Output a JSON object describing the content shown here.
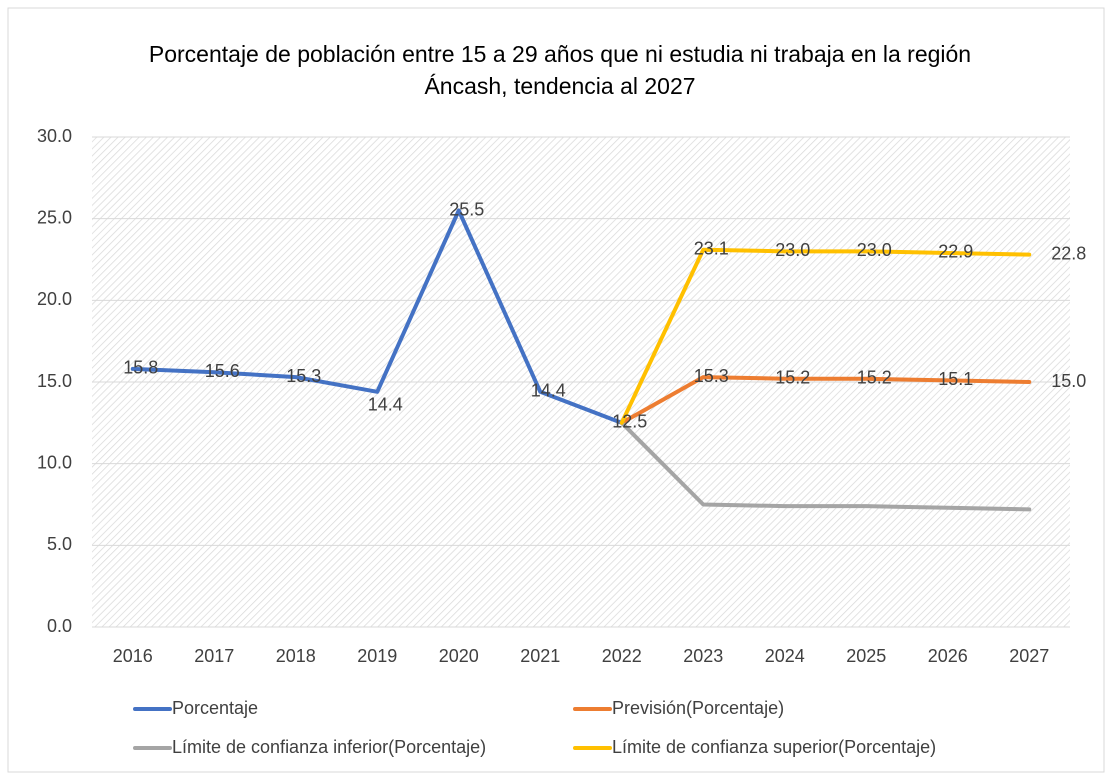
{
  "chart_data": {
    "type": "line",
    "title": "Porcentaje de población entre 15 a 29 años que ni estudia ni trabaja en la región Áncash, tendencia al 2027",
    "categories": [
      "2016",
      "2017",
      "2018",
      "2019",
      "2020",
      "2021",
      "2022",
      "2023",
      "2024",
      "2025",
      "2026",
      "2027"
    ],
    "ylim": [
      0,
      30
    ],
    "yticks": [
      {
        "value": 0,
        "label": "0.0"
      },
      {
        "value": 5,
        "label": "5.0"
      },
      {
        "value": 10,
        "label": "10.0"
      },
      {
        "value": 15,
        "label": "15.0"
      },
      {
        "value": 20,
        "label": "20.0"
      },
      {
        "value": 25,
        "label": "25.0"
      },
      {
        "value": 30,
        "label": "30.0"
      }
    ],
    "grid": true,
    "legend": "bottom",
    "series": [
      {
        "name": "Porcentaje",
        "color": "#4472c4",
        "values": [
          15.8,
          15.6,
          15.3,
          14.4,
          25.5,
          14.4,
          12.5,
          null,
          null,
          null,
          null,
          null
        ]
      },
      {
        "name": "Previsión(Porcentaje)",
        "color": "#ed7d31",
        "values": [
          null,
          null,
          null,
          null,
          null,
          null,
          12.5,
          15.3,
          15.2,
          15.2,
          15.1,
          15.0
        ],
        "value_labels": [
          null,
          null,
          null,
          null,
          null,
          null,
          null,
          "15.3",
          "15.2",
          "15.2",
          "15.1",
          "15.0"
        ]
      },
      {
        "name": "Límite de confianza inferior(Porcentaje)",
        "color": "#a5a5a5",
        "values": [
          null,
          null,
          null,
          null,
          null,
          null,
          12.5,
          7.5,
          7.4,
          7.4,
          7.3,
          7.2
        ],
        "value_labels": [
          null,
          null,
          null,
          null,
          null,
          null,
          null,
          null,
          null,
          null,
          null,
          null
        ]
      },
      {
        "name": "Límite de confianza superior(Porcentaje)",
        "color": "#ffc000",
        "values": [
          null,
          null,
          null,
          null,
          null,
          null,
          12.5,
          23.1,
          23.0,
          23.0,
          22.9,
          22.8
        ],
        "value_labels": [
          null,
          null,
          null,
          null,
          null,
          null,
          null,
          "23.1",
          "23.0",
          "23.0",
          "22.9",
          "22.8"
        ]
      }
    ]
  }
}
